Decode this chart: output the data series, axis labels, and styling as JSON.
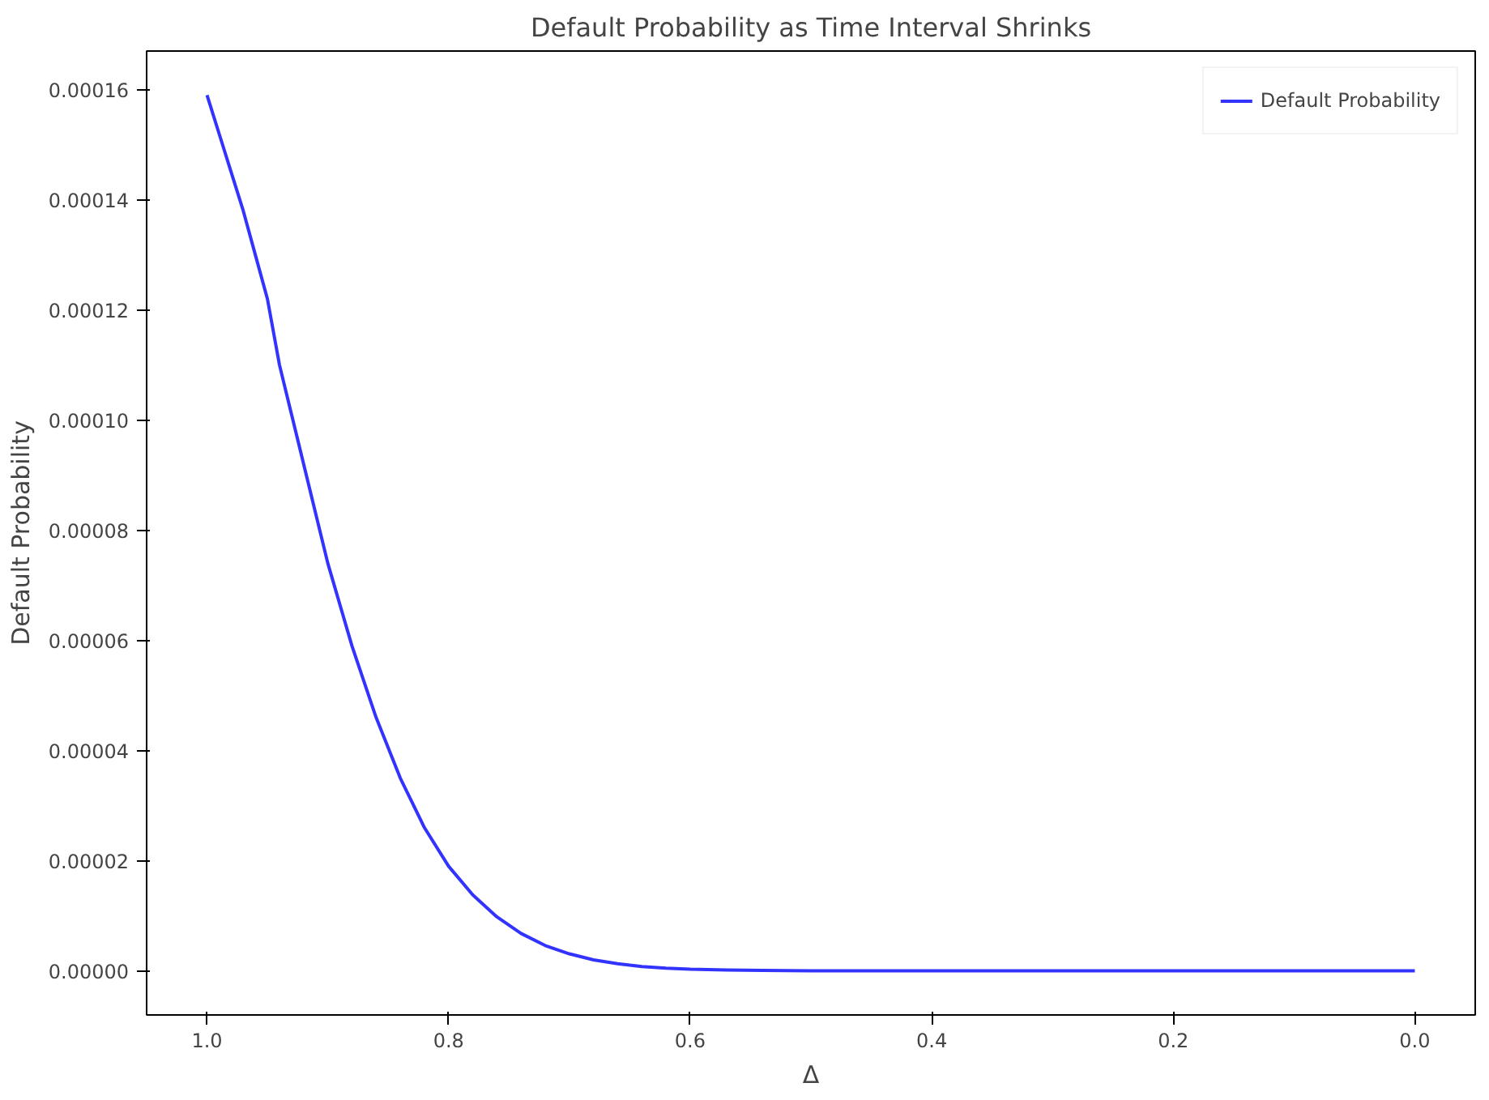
{
  "chart_data": {
    "type": "line",
    "title": "Default Probability as Time Interval Shrinks",
    "xlabel": "Δ",
    "ylabel": "Default Probability",
    "x": [
      1.0,
      0.99,
      0.98,
      0.97,
      0.96,
      0.95,
      0.94,
      0.93,
      0.92,
      0.91,
      0.9,
      0.88,
      0.86,
      0.84,
      0.82,
      0.8,
      0.78,
      0.76,
      0.74,
      0.72,
      0.7,
      0.68,
      0.66,
      0.64,
      0.62,
      0.6,
      0.57,
      0.54,
      0.5,
      0.45,
      0.4,
      0.3,
      0.2,
      0.1,
      0.0
    ],
    "series": [
      {
        "name": "Default Probability",
        "color": "#3333ff",
        "values": [
          0.000159,
          0.000152,
          0.000145,
          0.000138,
          0.00013,
          0.000122,
          0.00011,
          0.000101,
          9.2e-05,
          8.3e-05,
          7.4e-05,
          5.9e-05,
          4.6e-05,
          3.5e-05,
          2.6e-05,
          1.9e-05,
          1.38e-05,
          9.8e-06,
          6.8e-06,
          4.6e-06,
          3.1e-06,
          2e-06,
          1.3e-06,
          8e-07,
          5e-07,
          3e-07,
          1.5e-07,
          7e-08,
          2e-08,
          0.0,
          0.0,
          0.0,
          0.0,
          0.0,
          0.0
        ]
      }
    ],
    "xlim": [
      1.05,
      -0.05
    ],
    "ylim": [
      -8e-06,
      0.000167
    ],
    "xticks": [
      {
        "value": 1.0,
        "label": "1.0"
      },
      {
        "value": 0.8,
        "label": "0.8"
      },
      {
        "value": 0.6,
        "label": "0.6"
      },
      {
        "value": 0.4,
        "label": "0.4"
      },
      {
        "value": 0.2,
        "label": "0.2"
      },
      {
        "value": 0.0,
        "label": "0.0"
      }
    ],
    "yticks": [
      {
        "value": 0,
        "label": "0.00000"
      },
      {
        "value": 2e-05,
        "label": "0.00002"
      },
      {
        "value": 4e-05,
        "label": "0.00004"
      },
      {
        "value": 6e-05,
        "label": "0.00006"
      },
      {
        "value": 8e-05,
        "label": "0.00008"
      },
      {
        "value": 0.0001,
        "label": "0.00010"
      },
      {
        "value": 0.00012,
        "label": "0.00012"
      },
      {
        "value": 0.00014,
        "label": "0.00014"
      },
      {
        "value": 0.00016,
        "label": "0.00016"
      }
    ],
    "grid": false,
    "legend": "top right",
    "line_style": "solid",
    "marker": "none"
  }
}
